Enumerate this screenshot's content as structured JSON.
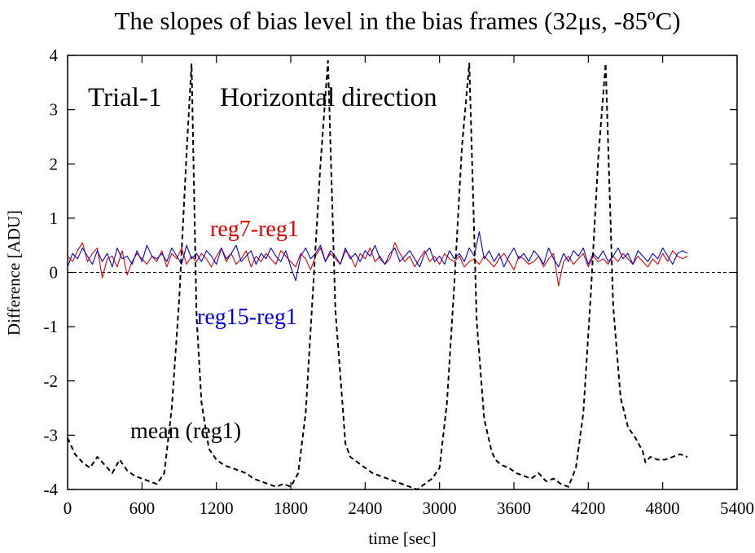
{
  "chart_data": {
    "type": "line",
    "title": "The slopes of bias level in the bias frames (32μs, -85ºC)",
    "xlabel": "time [sec]",
    "ylabel": "Difference [ADU]",
    "xlim": [
      0,
      5400
    ],
    "ylim": [
      -4,
      4
    ],
    "xticks": [
      0,
      600,
      1200,
      1800,
      2400,
      3000,
      3600,
      4200,
      4800,
      5400
    ],
    "yticks": [
      -4,
      -3,
      -2,
      -1,
      0,
      1,
      2,
      3,
      4
    ],
    "x_tick_labels": [
      "0",
      "600",
      "1200",
      "1800",
      "2400",
      "3000",
      "3600",
      "4200",
      "4800",
      "5400"
    ],
    "y_tick_labels": [
      "-4",
      "-3",
      "-2",
      "-1",
      "0",
      "1",
      "2",
      "3",
      "4"
    ],
    "grid": false,
    "reference_line": {
      "y": 0,
      "style": "dashed"
    },
    "annotations": {
      "trial": "Trial-1",
      "direction": "Horizontal direction"
    },
    "series": [
      {
        "name": "reg7-reg1",
        "color": "#e00000",
        "style": "solid",
        "x": [
          0,
          40,
          80,
          120,
          160,
          200,
          240,
          280,
          320,
          360,
          400,
          440,
          480,
          520,
          560,
          600,
          640,
          680,
          720,
          760,
          800,
          840,
          880,
          920,
          960,
          1000,
          1040,
          1080,
          1120,
          1160,
          1200,
          1240,
          1280,
          1320,
          1360,
          1400,
          1440,
          1480,
          1520,
          1560,
          1600,
          1640,
          1680,
          1720,
          1760,
          1800,
          1840,
          1880,
          1920,
          1960,
          2000,
          2040,
          2080,
          2120,
          2160,
          2200,
          2240,
          2280,
          2320,
          2360,
          2400,
          2440,
          2480,
          2520,
          2560,
          2600,
          2640,
          2680,
          2720,
          2760,
          2800,
          2840,
          2880,
          2920,
          2960,
          3000,
          3040,
          3080,
          3120,
          3160,
          3200,
          3240,
          3280,
          3320,
          3360,
          3400,
          3440,
          3480,
          3520,
          3560,
          3600,
          3640,
          3680,
          3720,
          3760,
          3800,
          3840,
          3880,
          3920,
          3960,
          4000,
          4040,
          4080,
          4120,
          4160,
          4200,
          4240,
          4280,
          4320,
          4360,
          4400,
          4440,
          4480,
          4520,
          4560,
          4600,
          4640,
          4680,
          4720,
          4760,
          4800,
          4840,
          4880,
          4920,
          4960,
          5000
        ],
        "values": [
          0.3,
          0.2,
          0.4,
          0.55,
          0.2,
          0.35,
          0.45,
          -0.1,
          0.25,
          0.3,
          0.1,
          0.4,
          -0.05,
          0.2,
          0.35,
          0.25,
          0.15,
          0.3,
          0.2,
          0.4,
          0.1,
          0.35,
          0.25,
          0.45,
          0.15,
          0.3,
          0.2,
          0.35,
          0.25,
          0.1,
          0.3,
          0.45,
          0.2,
          0.35,
          0.15,
          0.25,
          0.4,
          0.1,
          0.3,
          0.2,
          0.35,
          0.25,
          0.15,
          0.4,
          0.3,
          0.2,
          0.1,
          0.35,
          0.25,
          0.05,
          0.3,
          0.45,
          0.2,
          0.35,
          0.25,
          0.15,
          0.4,
          0.3,
          0.1,
          0.35,
          0.25,
          0.45,
          0.2,
          0.3,
          0.15,
          0.25,
          0.55,
          0.35,
          0.2,
          0.3,
          0.1,
          0.25,
          0.4,
          0.2,
          0.3,
          0.15,
          0.35,
          0.25,
          0.2,
          0.3,
          0.1,
          0.2,
          0.25,
          0.15,
          0.3,
          0.2,
          0.1,
          0.25,
          0.35,
          0.2,
          0.05,
          0.3,
          0.25,
          0.15,
          0.2,
          0.3,
          0.1,
          0.25,
          0.35,
          -0.25,
          0.2,
          0.3,
          0.15,
          0.25,
          0.35,
          0.1,
          0.3,
          0.2,
          0.25,
          0.15,
          0.3,
          0.2,
          0.35,
          0.25,
          0.15,
          0.3,
          0.2,
          0.1,
          0.25,
          0.15,
          0.35,
          0.2,
          0.4,
          0.3,
          0.25,
          0.3
        ]
      },
      {
        "name": "reg15-reg1",
        "color": "#0000e0",
        "style": "solid",
        "x": [
          0,
          40,
          80,
          120,
          160,
          200,
          240,
          280,
          320,
          360,
          400,
          440,
          480,
          520,
          560,
          600,
          640,
          680,
          720,
          760,
          800,
          840,
          880,
          920,
          960,
          1000,
          1040,
          1080,
          1120,
          1160,
          1200,
          1240,
          1280,
          1320,
          1360,
          1400,
          1440,
          1480,
          1520,
          1560,
          1600,
          1640,
          1680,
          1720,
          1760,
          1800,
          1840,
          1880,
          1920,
          1960,
          2000,
          2040,
          2080,
          2120,
          2160,
          2200,
          2240,
          2280,
          2320,
          2360,
          2400,
          2440,
          2480,
          2520,
          2560,
          2600,
          2640,
          2680,
          2720,
          2760,
          2800,
          2840,
          2880,
          2920,
          2960,
          3000,
          3040,
          3080,
          3120,
          3160,
          3200,
          3240,
          3280,
          3320,
          3360,
          3400,
          3440,
          3480,
          3520,
          3560,
          3600,
          3640,
          3680,
          3720,
          3760,
          3800,
          3840,
          3880,
          3920,
          3960,
          4000,
          4040,
          4080,
          4120,
          4160,
          4200,
          4240,
          4280,
          4320,
          4360,
          4400,
          4440,
          4480,
          4520,
          4560,
          4600,
          4640,
          4680,
          4720,
          4760,
          4800,
          4840,
          4880,
          4920,
          4960,
          5000
        ],
        "values": [
          0.1,
          0.35,
          0.25,
          0.45,
          0.3,
          0.15,
          0.4,
          0.2,
          0.35,
          0.1,
          0.45,
          0.25,
          0.3,
          0.15,
          0.4,
          0.2,
          0.5,
          0.3,
          0.25,
          0.35,
          0.2,
          0.45,
          0.3,
          0.15,
          0.5,
          0.25,
          0.35,
          0.2,
          0.4,
          0.3,
          0.15,
          0.45,
          0.25,
          0.35,
          0.5,
          0.2,
          0.3,
          0.4,
          0.15,
          0.35,
          0.25,
          0.45,
          0.3,
          0.2,
          0.4,
          0.1,
          -0.15,
          0.3,
          0.45,
          0.25,
          0.35,
          0.5,
          0.2,
          0.4,
          0.3,
          0.15,
          0.45,
          0.25,
          0.35,
          0.2,
          0.4,
          0.3,
          0.5,
          0.25,
          0.15,
          0.35,
          0.45,
          0.2,
          0.3,
          0.4,
          0.25,
          0.1,
          0.35,
          0.45,
          0.2,
          0.3,
          0.15,
          0.4,
          0.25,
          0.35,
          0.2,
          0.45,
          0.3,
          0.75,
          0.25,
          0.4,
          0.2,
          0.35,
          0.1,
          0.3,
          0.45,
          0.25,
          0.35,
          0.2,
          0.4,
          0.3,
          0.15,
          0.45,
          0.25,
          0.1,
          0.35,
          0.2,
          0.4,
          0.3,
          0.45,
          0.15,
          0.35,
          0.25,
          0.4,
          0.2,
          0.3,
          0.45,
          0.25,
          0.35,
          0.15,
          0.4,
          0.3,
          0.2,
          0.35,
          0.25,
          0.45,
          0.3,
          0.15,
          0.35,
          0.4,
          0.35
        ]
      },
      {
        "name": "mean (reg1)",
        "color": "#000000",
        "style": "dashed",
        "x": [
          0,
          60,
          120,
          180,
          240,
          300,
          360,
          420,
          480,
          540,
          600,
          660,
          720,
          780,
          840,
          900,
          960,
          1000,
          1040,
          1080,
          1140,
          1200,
          1260,
          1320,
          1380,
          1440,
          1500,
          1560,
          1620,
          1680,
          1740,
          1800,
          1860,
          1920,
          1980,
          2040,
          2100,
          2160,
          2220,
          2240,
          2280,
          2340,
          2400,
          2460,
          2520,
          2580,
          2640,
          2700,
          2760,
          2820,
          2880,
          2940,
          3000,
          3060,
          3120,
          3180,
          3240,
          3300,
          3360,
          3420,
          3450,
          3500,
          3560,
          3620,
          3680,
          3740,
          3800,
          3860,
          3920,
          3980,
          4040,
          4100,
          4160,
          4220,
          4280,
          4340,
          4400,
          4460,
          4520,
          4580,
          4640,
          4660,
          4700,
          4760,
          4820,
          4880,
          4940,
          5000
        ],
        "values": [
          -3.05,
          -3.35,
          -3.5,
          -3.6,
          -3.4,
          -3.55,
          -3.7,
          -3.45,
          -3.65,
          -3.75,
          -3.8,
          -3.85,
          -3.9,
          -3.7,
          -2.5,
          -0.5,
          2.2,
          3.85,
          -0.8,
          -2.4,
          -3.25,
          -3.45,
          -3.55,
          -3.6,
          -3.65,
          -3.7,
          -3.8,
          -3.85,
          -3.9,
          -3.95,
          -3.9,
          -3.95,
          -3.7,
          -2.6,
          -0.3,
          2.0,
          3.9,
          -0.7,
          -2.5,
          -3.15,
          -3.4,
          -3.5,
          -3.6,
          -3.7,
          -3.75,
          -3.8,
          -3.85,
          -3.9,
          -3.95,
          -4.0,
          -3.9,
          -3.8,
          -3.6,
          -2.4,
          -0.2,
          2.3,
          3.85,
          -0.9,
          -2.7,
          -3.3,
          -3.45,
          -3.55,
          -3.6,
          -3.7,
          -3.75,
          -3.8,
          -3.7,
          -3.85,
          -3.8,
          -3.9,
          -3.95,
          -3.6,
          -2.6,
          -0.4,
          2.1,
          3.85,
          -0.6,
          -2.3,
          -2.85,
          -3.05,
          -3.3,
          -3.5,
          -3.4,
          -3.45,
          -3.45,
          -3.4,
          -3.35,
          -3.4
        ]
      }
    ]
  }
}
